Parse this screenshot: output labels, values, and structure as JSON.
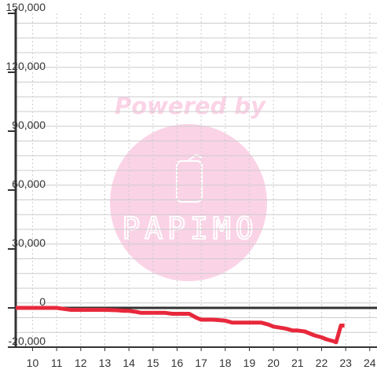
{
  "watermark": {
    "caption": "Powered by",
    "logo_text": "PAPIMO",
    "color": "#fbd3e6"
  },
  "chart_data": {
    "type": "line",
    "title": "",
    "xlabel": "",
    "ylabel": "",
    "xlim": [
      9.3,
      24.3
    ],
    "ylim": [
      -20000,
      150000
    ],
    "grid": true,
    "legend": "none",
    "x_ticks": [
      10,
      11,
      12,
      13,
      14,
      15,
      16,
      17,
      18,
      19,
      20,
      21,
      22,
      23,
      24
    ],
    "x_tick_labels": [
      "10",
      "11",
      "12",
      "13",
      "14",
      "15",
      "16",
      "17",
      "18",
      "19",
      "20",
      "21",
      "22",
      "23",
      "24"
    ],
    "y_ticks": [
      -20000,
      0,
      30000,
      60000,
      90000,
      120000,
      150000
    ],
    "y_tick_labels": [
      "-20,000",
      "0",
      "30,000",
      "60,000",
      "90,000",
      "120,000",
      "150,000"
    ],
    "colors": {
      "line": "#e8283c",
      "axis": "#333333",
      "grid": "#cccccc",
      "zero_line": "#333333"
    },
    "series": [
      {
        "x": [
          9.3,
          10.0,
          11.0,
          11.3,
          11.6,
          12.0,
          12.5,
          13.0,
          13.5,
          13.8,
          14.0,
          14.3,
          14.5,
          15.0,
          15.5,
          15.8,
          16.0,
          16.5,
          16.8,
          17.0,
          17.2,
          17.5,
          18.0,
          18.3,
          18.5,
          19.0,
          19.5,
          19.8,
          20.0,
          20.5,
          20.8,
          21.0,
          21.3,
          21.7,
          22.0,
          22.2,
          22.5,
          22.6,
          22.8,
          22.95
        ],
        "y": [
          0,
          0,
          0,
          -500,
          -1000,
          -1000,
          -1000,
          -1000,
          -1200,
          -1500,
          -1500,
          -2000,
          -2500,
          -2500,
          -2500,
          -3000,
          -3000,
          -3000,
          -5000,
          -6000,
          -6000,
          -6000,
          -6500,
          -7500,
          -7500,
          -7500,
          -7500,
          -8500,
          -9500,
          -10500,
          -11500,
          -11500,
          -12000,
          -14000,
          -15000,
          -16000,
          -17000,
          -17500,
          -9000,
          -9000
        ]
      }
    ]
  }
}
